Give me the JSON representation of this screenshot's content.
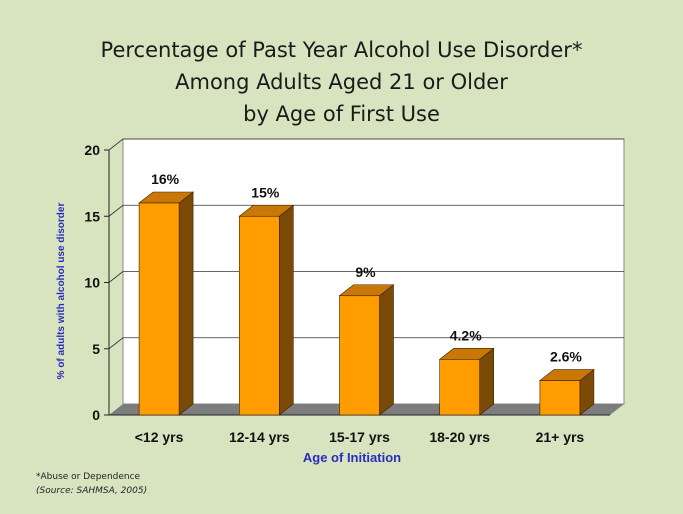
{
  "chart_data": {
    "type": "bar",
    "title_lines": [
      "Percentage of Past Year Alcohol Use Disorder*",
      "Among Adults Aged 21 or Older",
      "by Age of First Use"
    ],
    "categories": [
      "<12 yrs",
      "12-14 yrs",
      "15-17 yrs",
      "18-20 yrs",
      "21+ yrs"
    ],
    "values": [
      16,
      15,
      9,
      4.2,
      2.6
    ],
    "data_labels": [
      "16%",
      "15%",
      "9%",
      "4.2%",
      "2.6%"
    ],
    "xlabel": "Age of Initiation",
    "ylabel": "% of adults with alcohol use disorder",
    "ylim": [
      0,
      20
    ],
    "yticks": [
      0,
      5,
      10,
      15,
      20
    ],
    "grid": true,
    "bar_style": "3d",
    "colors": {
      "bar_front": "#ff9c00",
      "bar_side": "#7a4a06",
      "bar_top": "#c97808",
      "plot_bg": "#ffffff",
      "floor": "#7d7d7d",
      "axis_label": "#2b2bbf"
    }
  },
  "footnotes": {
    "note": "*Abuse or Dependence",
    "source": "(Source: SAHMSA, 2005)"
  }
}
